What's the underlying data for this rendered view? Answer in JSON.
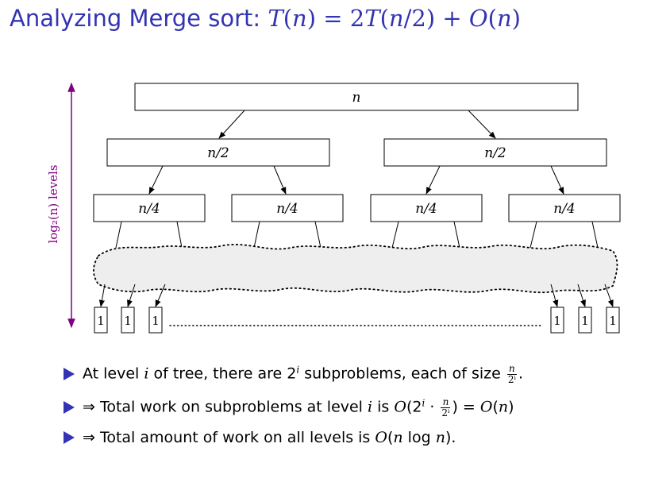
{
  "title": {
    "prefix": "Analyzing Merge sort: ",
    "T1": "T",
    "p1": "(",
    "n1": "n",
    "p2": ") = 2",
    "T2": "T",
    "p3": "(",
    "n2": "n",
    "p4": "/2) + ",
    "O": "O",
    "p5": "(",
    "n3": "n",
    "p6": ")"
  },
  "tree": {
    "root": "n",
    "level1": [
      "n/2",
      "n/2"
    ],
    "level2": [
      "n/4",
      "n/4",
      "n/4",
      "n/4"
    ],
    "leaves_left": [
      "1",
      "1",
      "1"
    ],
    "leaves_right": [
      "1",
      "1",
      "1"
    ],
    "levels_label": "log₂(n) levels",
    "axis_color": "#800080"
  },
  "bullets": [
    {
      "t1": "At level ",
      "i1": "i",
      "t2": " of tree, there are 2",
      "sup1": "i",
      "t3": " subproblems, each of size ",
      "num": "n",
      "den": "2ⁱ",
      "t4": "."
    },
    {
      "t1": "⇒ Total work on subproblems at level ",
      "i1": "i",
      "t2": " is ",
      "O1": "O",
      "t3": "(2",
      "sup1": "i",
      "t4": " · ",
      "num": "n",
      "den": "2ⁱ",
      "t5": ") = ",
      "O2": "O",
      "t6": "(",
      "n1": "n",
      "t7": ")"
    },
    {
      "t1": "⇒ Total amount of work on all levels is ",
      "O1": "O",
      "t2": "(",
      "n1": "n",
      "t3": " log ",
      "n2": "n",
      "t4": ")."
    }
  ],
  "colors": {
    "title": "#3333b3",
    "bullet": "#3333b3",
    "cloud_fill": "#eeeeee"
  }
}
